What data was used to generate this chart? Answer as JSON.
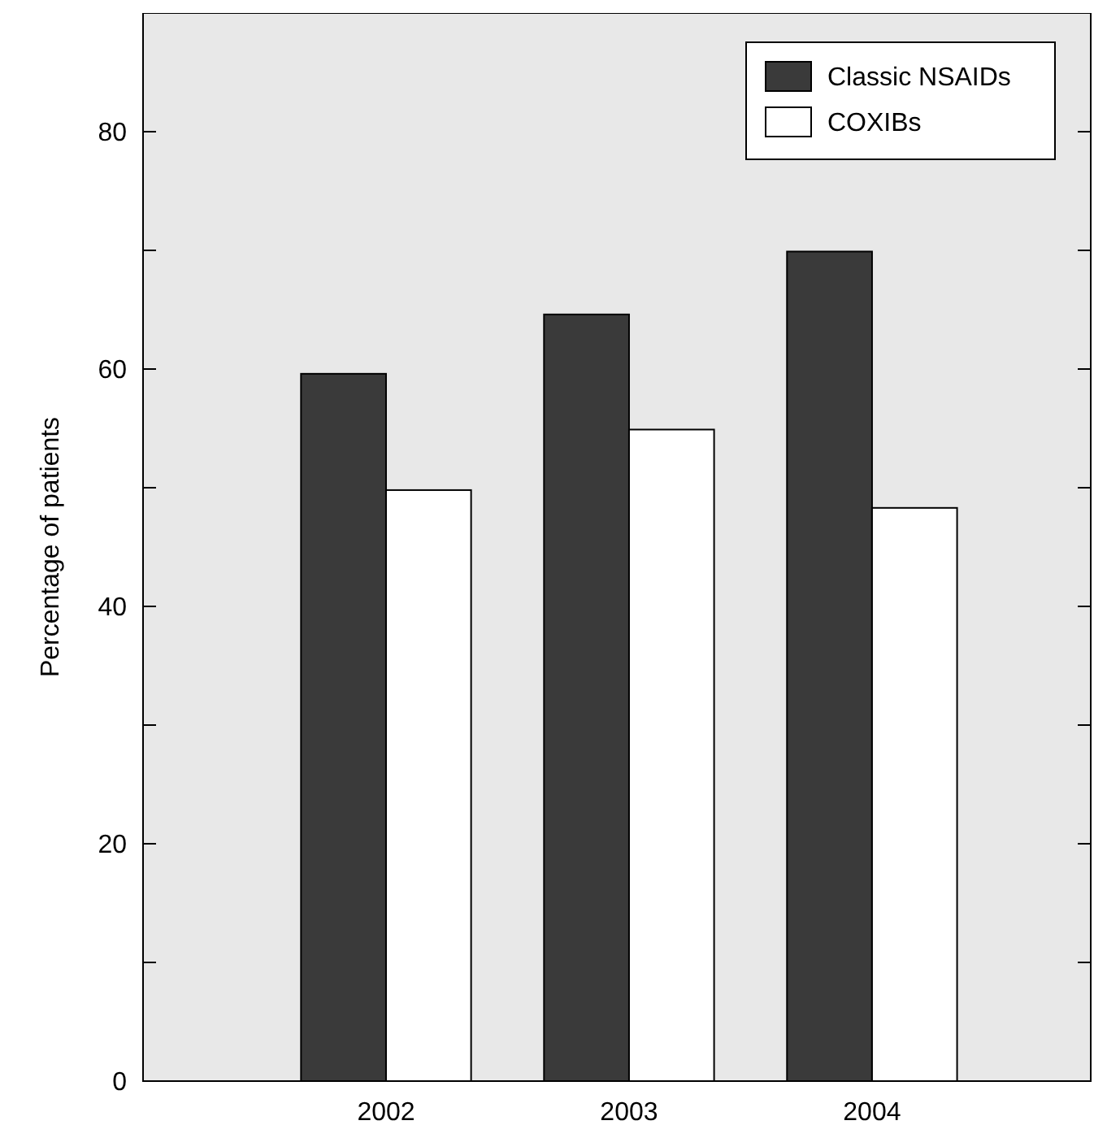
{
  "chart_data": {
    "type": "bar",
    "ylabel": "Percentage of patients",
    "categories": [
      "2002",
      "2003",
      "2004"
    ],
    "series": [
      {
        "name": "Classic NSAIDs",
        "color": "#3a3a3a",
        "values": [
          59.6,
          64.6,
          69.9
        ]
      },
      {
        "name": "COXIBs",
        "color": "#ffffff",
        "values": [
          49.8,
          54.9,
          48.3
        ]
      }
    ],
    "ylim": [
      0,
      90
    ],
    "yticks": [
      0,
      {
        "value": 10,
        "label": null
      },
      20,
      {
        "value": 30,
        "label": null
      },
      40,
      {
        "value": 50,
        "label": null
      },
      60,
      {
        "value": 70,
        "label": null
      },
      80
    ],
    "grid": false,
    "legend": "top right"
  }
}
